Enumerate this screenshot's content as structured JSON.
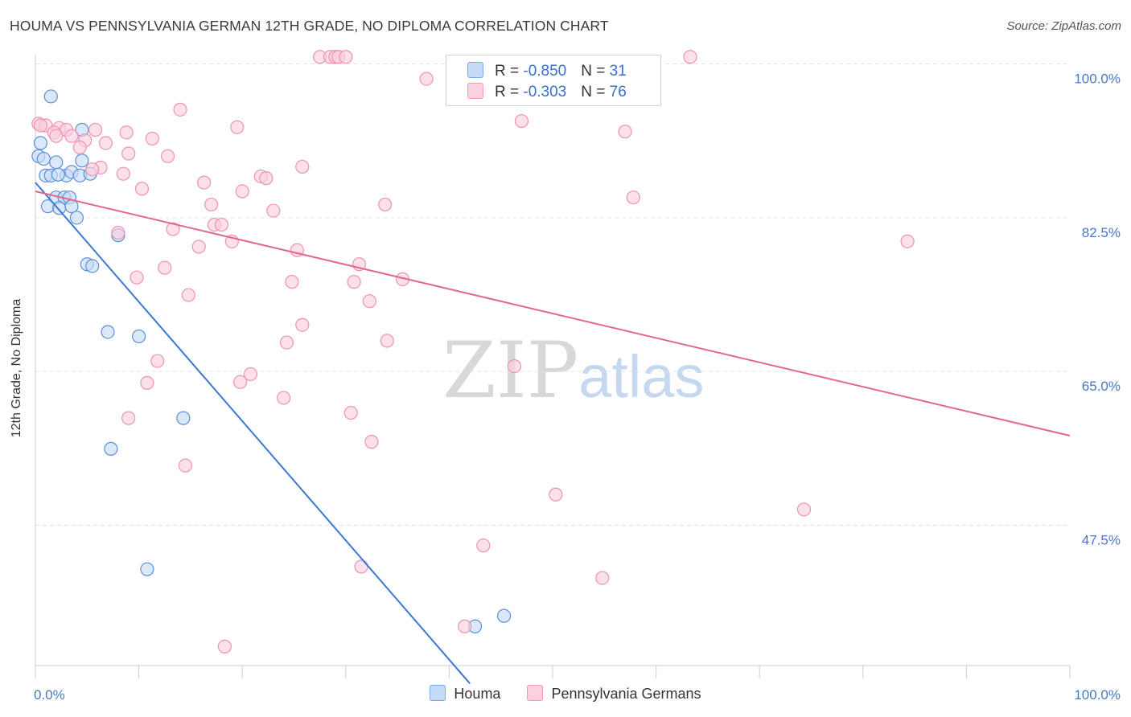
{
  "title": "HOUMA VS PENNSYLVANIA GERMAN 12TH GRADE, NO DIPLOMA CORRELATION CHART",
  "source": "Source: ZipAtlas.com",
  "watermark": {
    "zip": "ZIP",
    "atlas": "atlas"
  },
  "legend": {
    "rows": [
      {
        "r_label": "R = ",
        "r_value": "-0.850",
        "n_label": "N = ",
        "n_value": "31",
        "color": "#7aa7e6",
        "fill": "#c6dbf7"
      },
      {
        "r_label": "R = ",
        "r_value": "-0.303",
        "n_label": "N = ",
        "n_value": "76",
        "color": "#f09ab8",
        "fill": "#fbd0df"
      }
    ]
  },
  "bottom_legend": [
    {
      "label": "Houma",
      "color": "#7aa7e6",
      "fill": "#c6dbf7"
    },
    {
      "label": "Pennsylvania Germans",
      "color": "#f09ab8",
      "fill": "#fbd0df"
    }
  ],
  "chart_data": {
    "type": "scatter",
    "title": "HOUMA VS PENNSYLVANIA GERMAN 12TH GRADE, NO DIPLOMA CORRELATION CHART",
    "xlabel": "",
    "ylabel": "12th Grade, No Diploma",
    "xlim": [
      0,
      100
    ],
    "ylim": [
      29.5,
      102.5
    ],
    "x_tick_labels": [
      {
        "value": 0,
        "label": "0.0%"
      },
      {
        "value": 100,
        "label": "100.0%"
      }
    ],
    "y_tick_labels": [
      {
        "value": 100.0,
        "label": "100.0%"
      },
      {
        "value": 82.5,
        "label": "82.5%"
      },
      {
        "value": 65.0,
        "label": "65.0%"
      },
      {
        "value": 47.5,
        "label": "47.5%"
      }
    ],
    "grid": true,
    "series": [
      {
        "name": "Houma",
        "color": "#5b8fd8",
        "fill": "#c6dbf7",
        "line_color": "#3a78d0",
        "trend": [
          [
            0,
            86.5
          ],
          [
            42,
            29.5
          ]
        ],
        "points": [
          [
            1.5,
            96.3
          ],
          [
            0.5,
            91.0
          ],
          [
            0.3,
            89.5
          ],
          [
            0.8,
            89.2
          ],
          [
            2.0,
            88.8
          ],
          [
            4.5,
            89.0
          ],
          [
            1.0,
            87.3
          ],
          [
            1.5,
            87.3
          ],
          [
            3.0,
            87.3
          ],
          [
            3.5,
            87.7
          ],
          [
            4.3,
            87.3
          ],
          [
            5.3,
            87.5
          ],
          [
            2.0,
            84.8
          ],
          [
            2.8,
            84.8
          ],
          [
            3.3,
            84.8
          ],
          [
            1.2,
            83.8
          ],
          [
            2.3,
            83.6
          ],
          [
            3.5,
            83.8
          ],
          [
            4.0,
            82.5
          ],
          [
            8.0,
            80.5
          ],
          [
            5.0,
            77.2
          ],
          [
            5.5,
            77.0
          ],
          [
            7.0,
            69.5
          ],
          [
            10.0,
            69.0
          ],
          [
            4.5,
            92.5
          ],
          [
            14.3,
            59.7
          ],
          [
            7.3,
            56.2
          ],
          [
            10.8,
            42.5
          ],
          [
            42.5,
            36.0
          ],
          [
            45.3,
            37.2
          ],
          [
            2.2,
            87.4
          ]
        ]
      },
      {
        "name": "Pennsylvania Germans",
        "color": "#ee92b2",
        "fill": "#fbd0df",
        "line_color": "#e0688f",
        "trend": [
          [
            0,
            85.5
          ],
          [
            100,
            57.7
          ]
        ],
        "points": [
          [
            27.5,
            100.8
          ],
          [
            28.5,
            100.8
          ],
          [
            29.0,
            100.8
          ],
          [
            29.3,
            100.8
          ],
          [
            30.0,
            100.8
          ],
          [
            63.3,
            100.8
          ],
          [
            37.8,
            98.3
          ],
          [
            14.0,
            94.8
          ],
          [
            0.3,
            93.2
          ],
          [
            1.0,
            93.0
          ],
          [
            2.3,
            92.7
          ],
          [
            3.0,
            92.5
          ],
          [
            1.8,
            92.2
          ],
          [
            3.5,
            91.8
          ],
          [
            5.8,
            92.5
          ],
          [
            8.8,
            92.2
          ],
          [
            19.5,
            92.8
          ],
          [
            47.0,
            93.5
          ],
          [
            57.0,
            92.3
          ],
          [
            11.3,
            91.5
          ],
          [
            4.8,
            91.3
          ],
          [
            6.8,
            91.0
          ],
          [
            4.3,
            90.5
          ],
          [
            9.0,
            89.8
          ],
          [
            12.8,
            89.5
          ],
          [
            6.3,
            88.2
          ],
          [
            5.5,
            88.0
          ],
          [
            8.5,
            87.5
          ],
          [
            25.8,
            88.3
          ],
          [
            21.8,
            87.2
          ],
          [
            22.3,
            87.0
          ],
          [
            16.3,
            86.5
          ],
          [
            10.3,
            85.8
          ],
          [
            20.0,
            85.5
          ],
          [
            57.8,
            84.8
          ],
          [
            17.0,
            84.0
          ],
          [
            33.8,
            84.0
          ],
          [
            23.0,
            83.3
          ],
          [
            17.3,
            81.7
          ],
          [
            18.0,
            81.7
          ],
          [
            13.3,
            81.2
          ],
          [
            8.0,
            80.8
          ],
          [
            19.0,
            79.8
          ],
          [
            15.8,
            79.2
          ],
          [
            84.3,
            79.8
          ],
          [
            25.3,
            78.8
          ],
          [
            31.3,
            77.2
          ],
          [
            12.5,
            76.8
          ],
          [
            9.8,
            75.7
          ],
          [
            35.5,
            75.5
          ],
          [
            24.8,
            75.2
          ],
          [
            30.8,
            75.2
          ],
          [
            14.8,
            73.7
          ],
          [
            32.3,
            73.0
          ],
          [
            25.8,
            70.3
          ],
          [
            24.3,
            68.3
          ],
          [
            34.0,
            68.5
          ],
          [
            11.8,
            66.2
          ],
          [
            20.8,
            64.7
          ],
          [
            19.8,
            63.8
          ],
          [
            10.8,
            63.7
          ],
          [
            46.3,
            65.6
          ],
          [
            24.0,
            62.0
          ],
          [
            30.5,
            60.3
          ],
          [
            9.0,
            59.7
          ],
          [
            32.5,
            57.0
          ],
          [
            14.5,
            54.3
          ],
          [
            50.3,
            51.0
          ],
          [
            74.3,
            49.3
          ],
          [
            43.3,
            45.2
          ],
          [
            31.5,
            42.8
          ],
          [
            54.8,
            41.5
          ],
          [
            41.5,
            36.0
          ],
          [
            18.3,
            33.7
          ],
          [
            0.5,
            93.0
          ],
          [
            2.0,
            91.8
          ]
        ]
      }
    ]
  }
}
